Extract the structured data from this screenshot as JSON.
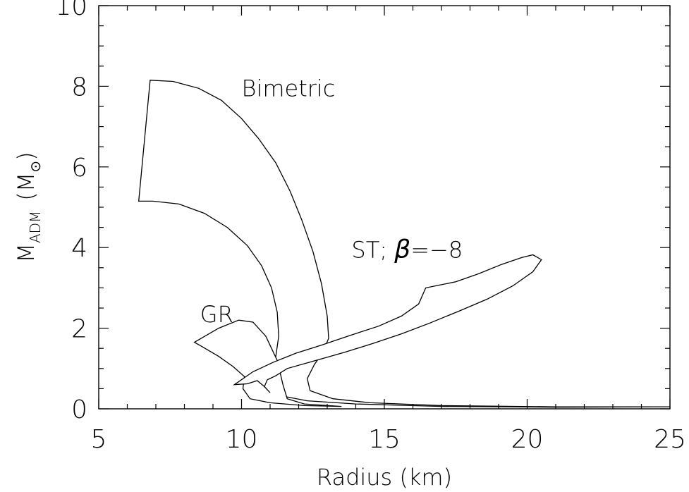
{
  "chart_data": {
    "type": "area",
    "title": "",
    "xlabel": "Radius (km)",
    "ylabel_main": "M",
    "ylabel_sub": "ADM",
    "ylabel_unit_open": "(M",
    "ylabel_unit_symbol": "⊙",
    "ylabel_unit_close": ")",
    "xlim": [
      5,
      25
    ],
    "ylim": [
      0,
      10
    ],
    "x_ticks": [
      5,
      10,
      15,
      20,
      25
    ],
    "x_tick_labels": [
      "5",
      "10",
      "15",
      "20",
      "25"
    ],
    "y_ticks": [
      0,
      2,
      4,
      6,
      8,
      10
    ],
    "y_tick_labels": [
      "0",
      "2",
      "4",
      "6",
      "8",
      "10"
    ],
    "x_minor_step": 1,
    "y_minor_step": 0.5,
    "grid": false,
    "series": [
      {
        "name": "Bimetric",
        "hatch": "horizontal",
        "label_at": [
          10.0,
          7.75
        ],
        "boundary": [
          [
            6.8,
            8.15
          ],
          [
            7.6,
            8.12
          ],
          [
            8.5,
            7.95
          ],
          [
            9.3,
            7.65
          ],
          [
            10.0,
            7.2
          ],
          [
            10.6,
            6.7
          ],
          [
            11.2,
            6.1
          ],
          [
            11.7,
            5.4
          ],
          [
            12.1,
            4.7
          ],
          [
            12.5,
            3.9
          ],
          [
            12.8,
            3.1
          ],
          [
            13.0,
            2.3
          ],
          [
            13.05,
            1.75
          ],
          [
            12.85,
            1.4
          ],
          [
            12.55,
            1.1
          ],
          [
            12.3,
            0.75
          ],
          [
            12.4,
            0.45
          ],
          [
            13.2,
            0.25
          ],
          [
            14.5,
            0.15
          ],
          [
            17.0,
            0.08
          ],
          [
            21.0,
            0.05
          ],
          [
            25.0,
            0.05
          ],
          [
            21.0,
            0.04
          ],
          [
            17.0,
            0.06
          ],
          [
            14.0,
            0.12
          ],
          [
            12.3,
            0.2
          ],
          [
            11.4,
            0.32
          ],
          [
            11.1,
            0.55
          ],
          [
            11.1,
            0.9
          ],
          [
            11.2,
            1.3
          ],
          [
            11.3,
            1.8
          ],
          [
            11.25,
            2.4
          ],
          [
            11.05,
            3.0
          ],
          [
            10.7,
            3.55
          ],
          [
            10.2,
            4.05
          ],
          [
            9.5,
            4.5
          ],
          [
            8.7,
            4.85
          ],
          [
            7.8,
            5.08
          ],
          [
            6.9,
            5.15
          ],
          [
            6.4,
            5.15
          ],
          [
            6.8,
            8.15
          ]
        ]
      },
      {
        "name": "GR",
        "hatch": "diagonal",
        "label_at": [
          8.55,
          2.15
        ],
        "boundary": [
          [
            8.35,
            1.65
          ],
          [
            9.2,
            2.0
          ],
          [
            9.9,
            2.2
          ],
          [
            10.4,
            2.15
          ],
          [
            10.85,
            1.8
          ],
          [
            11.25,
            1.2
          ],
          [
            11.45,
            0.6
          ],
          [
            11.6,
            0.25
          ],
          [
            12.2,
            0.12
          ],
          [
            13.5,
            0.06
          ],
          [
            12.2,
            0.08
          ],
          [
            11.0,
            0.15
          ],
          [
            10.3,
            0.25
          ],
          [
            10.05,
            0.5
          ],
          [
            10.1,
            0.8
          ],
          [
            9.7,
            1.05
          ],
          [
            9.2,
            1.3
          ],
          [
            8.6,
            1.55
          ],
          [
            8.35,
            1.65
          ]
        ]
      },
      {
        "name": "ST; β=−8",
        "label_text": "ST;",
        "label_symbol": "β",
        "label_rest": "=−8",
        "hatch": "vertical",
        "label_at": [
          13.85,
          3.75
        ],
        "boundary": [
          [
            9.75,
            0.6
          ],
          [
            10.4,
            0.92
          ],
          [
            11.1,
            1.15
          ],
          [
            11.9,
            1.38
          ],
          [
            12.8,
            1.58
          ],
          [
            13.8,
            1.82
          ],
          [
            14.8,
            2.05
          ],
          [
            15.6,
            2.3
          ],
          [
            16.2,
            2.6
          ],
          [
            16.45,
            3.0
          ],
          [
            16.8,
            3.05
          ],
          [
            17.5,
            3.15
          ],
          [
            18.3,
            3.35
          ],
          [
            19.1,
            3.58
          ],
          [
            19.8,
            3.75
          ],
          [
            20.2,
            3.82
          ],
          [
            20.5,
            3.7
          ],
          [
            20.2,
            3.4
          ],
          [
            19.5,
            3.05
          ],
          [
            18.6,
            2.72
          ],
          [
            17.6,
            2.42
          ],
          [
            16.6,
            2.13
          ],
          [
            15.6,
            1.86
          ],
          [
            14.6,
            1.62
          ],
          [
            13.6,
            1.4
          ],
          [
            12.6,
            1.2
          ],
          [
            11.6,
            1.0
          ],
          [
            11.2,
            0.82
          ],
          [
            10.9,
            0.72
          ],
          [
            10.8,
            0.55
          ],
          [
            11.0,
            0.4
          ],
          [
            10.8,
            0.55
          ],
          [
            10.55,
            0.7
          ],
          [
            10.2,
            0.62
          ],
          [
            9.75,
            0.6
          ]
        ]
      }
    ]
  }
}
